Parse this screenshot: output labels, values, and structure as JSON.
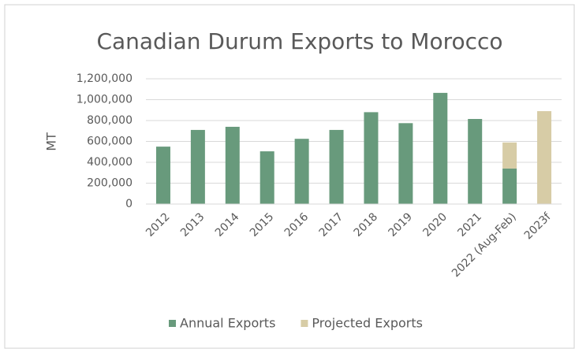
{
  "chart_data": {
    "type": "bar",
    "stacked": true,
    "title": "Canadian Durum Exports to Morocco",
    "ylabel": "MT",
    "categories": [
      "2012",
      "2013",
      "2014",
      "2015",
      "2016",
      "2017",
      "2018",
      "2019",
      "2020",
      "2021",
      "2022 (Aug-Feb)",
      "2023f"
    ],
    "series": [
      {
        "name": "Annual Exports",
        "color": "#689a7c",
        "values": [
          550000,
          710000,
          740000,
          505000,
          625000,
          710000,
          880000,
          775000,
          1065000,
          815000,
          340000,
          null
        ]
      },
      {
        "name": "Projected Exports",
        "color": "#d7cca6",
        "values": [
          null,
          null,
          null,
          null,
          null,
          null,
          null,
          null,
          null,
          null,
          250000,
          890000
        ]
      }
    ],
    "ylim": [
      0,
      1200000
    ],
    "yticks": [
      0,
      {
        "value": 200000,
        "label": "200,000"
      },
      {
        "value": 400000,
        "label": "400,000"
      },
      {
        "value": 600000,
        "label": "600,000"
      },
      {
        "value": 800000,
        "label": "800,000"
      },
      {
        "value": 1000000,
        "label": "1,000,000"
      },
      {
        "value": 1200000,
        "label": "1,200,000"
      }
    ],
    "grid": true,
    "legend": "bottom"
  }
}
